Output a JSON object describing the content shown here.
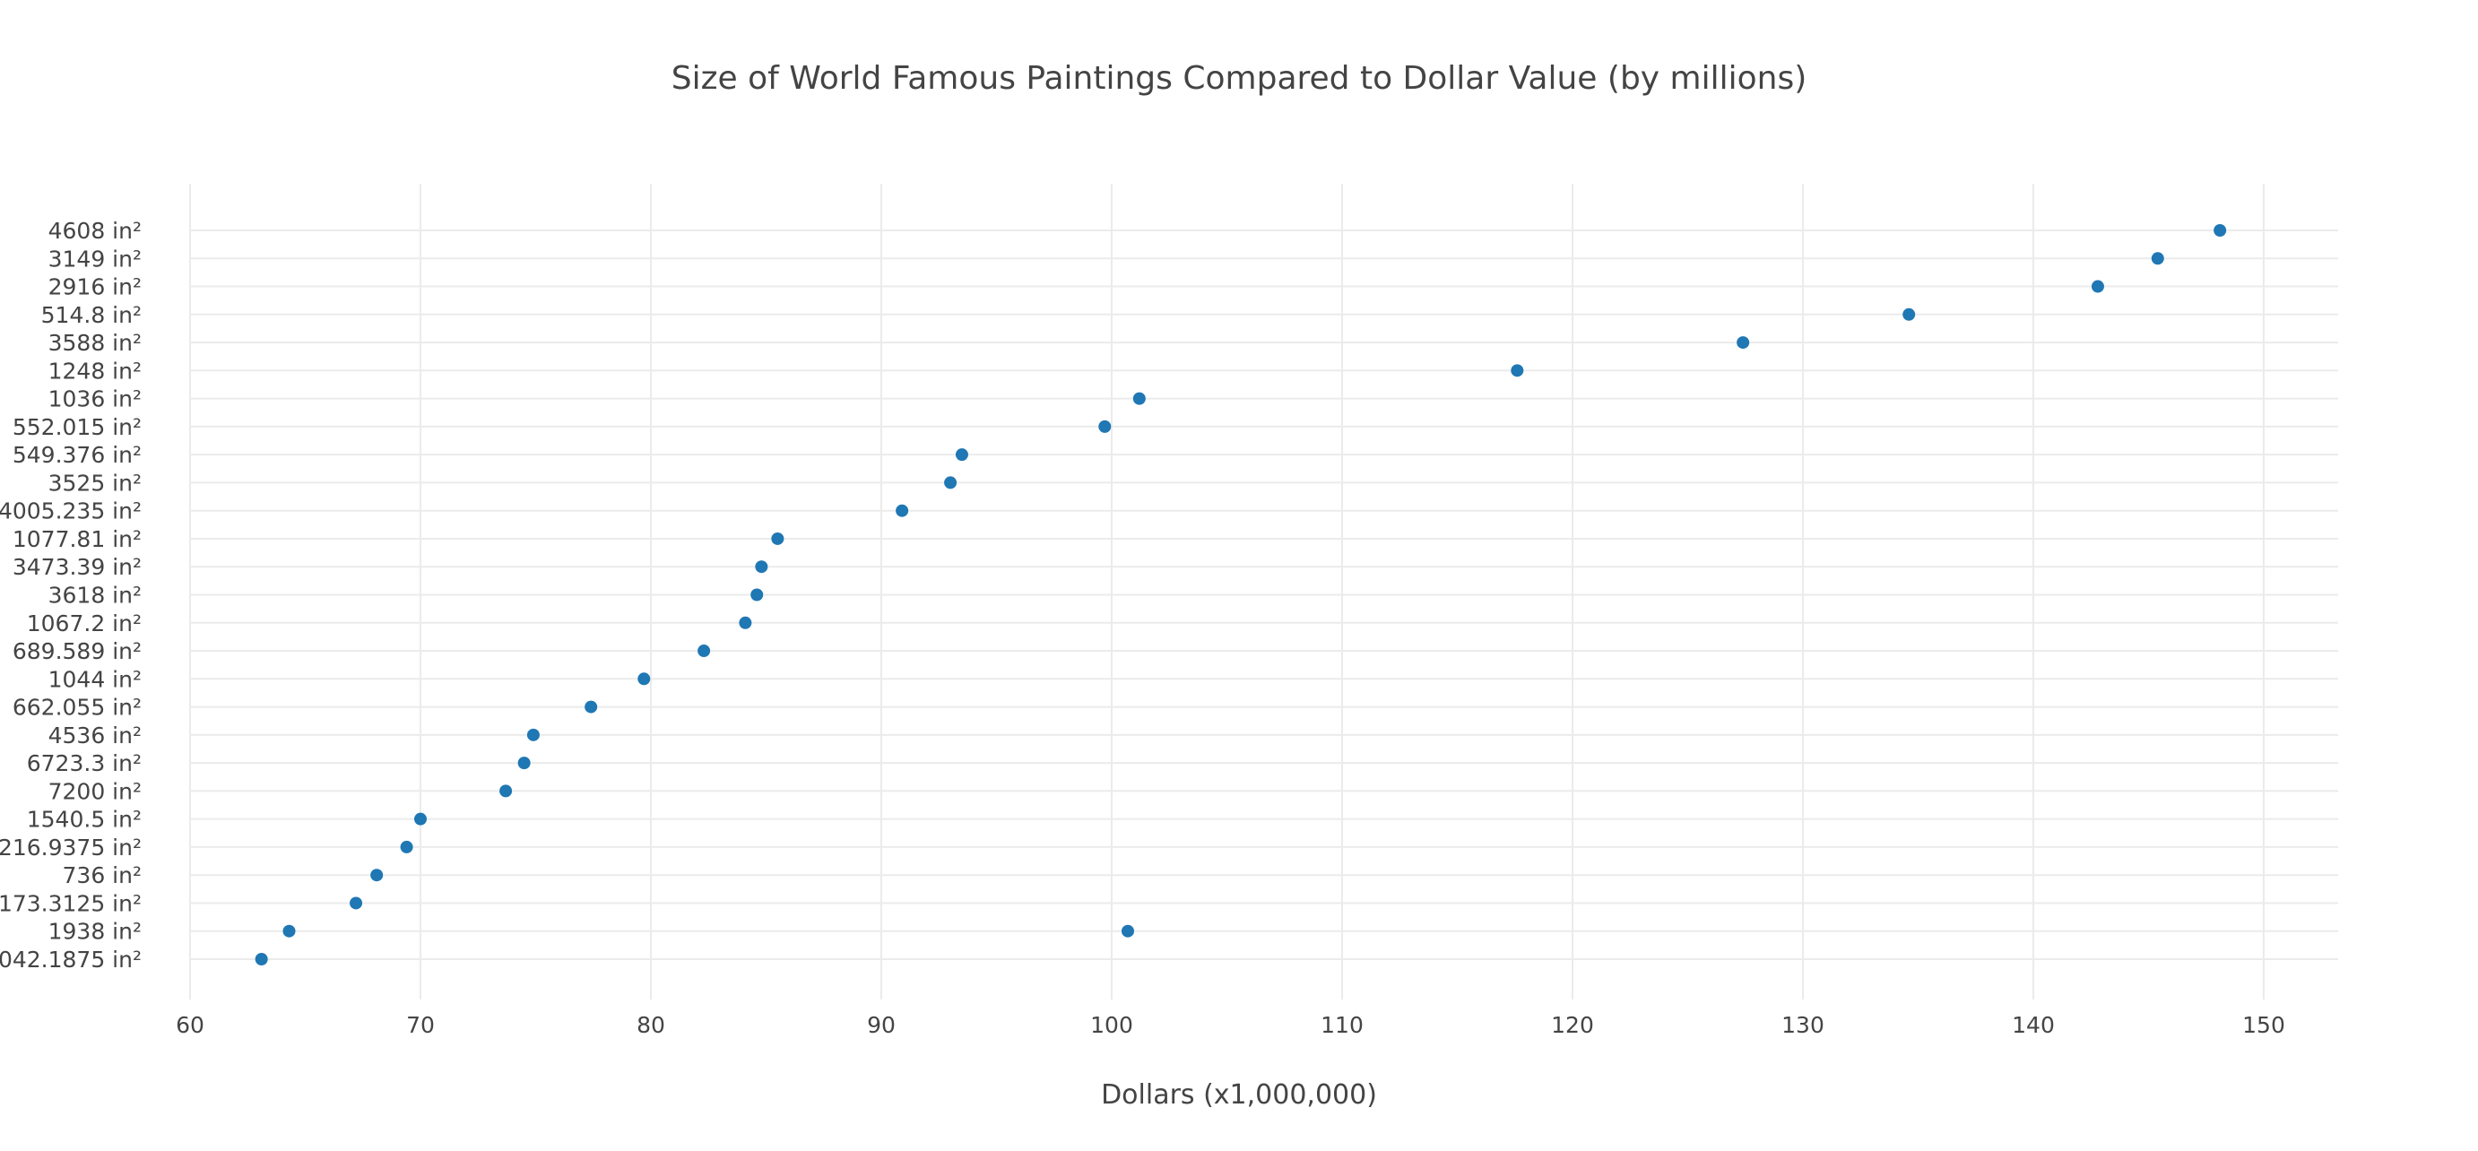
{
  "chart_data": {
    "type": "scatter",
    "title": "Size of World Famous Paintings Compared to Dollar Value (by millions)",
    "xlabel": "Dollars (x1,000,000)",
    "ylabel": "",
    "xlim": [
      60,
      153
    ],
    "x_ticks": [
      60,
      70,
      80,
      90,
      100,
      110,
      120,
      130,
      140,
      150
    ],
    "categories": [
      "042.1875 in²",
      "1938 in²",
      "173.3125 in²",
      "736 in²",
      "216.9375 in²",
      "1540.5 in²",
      "7200 in²",
      "6723.3 in²",
      "4536 in²",
      "662.055 in²",
      "1044 in²",
      "689.589 in²",
      "1067.2 in²",
      "3618 in²",
      "3473.39 in²",
      "1077.81 in²",
      "4005.235 in²",
      "3525 in²",
      "549.376 in²",
      "552.015 in²",
      "1036 in²",
      "1248 in²",
      "3588 in²",
      "514.8 in²",
      "2916 in²",
      "3149 in²",
      "4608 in²"
    ],
    "points": [
      {
        "x": 63.1,
        "y": "042.1875 in²"
      },
      {
        "x": 64.3,
        "y": "1938 in²"
      },
      {
        "x": 100.7,
        "y": "1938 in²"
      },
      {
        "x": 67.2,
        "y": "173.3125 in²"
      },
      {
        "x": 68.1,
        "y": "736 in²"
      },
      {
        "x": 69.4,
        "y": "216.9375 in²"
      },
      {
        "x": 70.0,
        "y": "1540.5 in²"
      },
      {
        "x": 73.7,
        "y": "7200 in²"
      },
      {
        "x": 74.5,
        "y": "6723.3 in²"
      },
      {
        "x": 74.9,
        "y": "4536 in²"
      },
      {
        "x": 77.4,
        "y": "662.055 in²"
      },
      {
        "x": 79.7,
        "y": "1044 in²"
      },
      {
        "x": 82.3,
        "y": "689.589 in²"
      },
      {
        "x": 84.1,
        "y": "1067.2 in²"
      },
      {
        "x": 84.6,
        "y": "3618 in²"
      },
      {
        "x": 84.8,
        "y": "3473.39 in²"
      },
      {
        "x": 85.5,
        "y": "1077.81 in²"
      },
      {
        "x": 90.9,
        "y": "4005.235 in²"
      },
      {
        "x": 93.0,
        "y": "3525 in²"
      },
      {
        "x": 93.5,
        "y": "549.376 in²"
      },
      {
        "x": 99.7,
        "y": "552.015 in²"
      },
      {
        "x": 101.2,
        "y": "1036 in²"
      },
      {
        "x": 117.6,
        "y": "1248 in²"
      },
      {
        "x": 127.4,
        "y": "3588 in²"
      },
      {
        "x": 134.6,
        "y": "514.8 in²"
      },
      {
        "x": 142.8,
        "y": "2916 in²"
      },
      {
        "x": 145.4,
        "y": "3149 in²"
      },
      {
        "x": 148.1,
        "y": "4608 in²"
      }
    ],
    "marker_color": "#1f77b4",
    "grid": true,
    "legend": "none"
  }
}
